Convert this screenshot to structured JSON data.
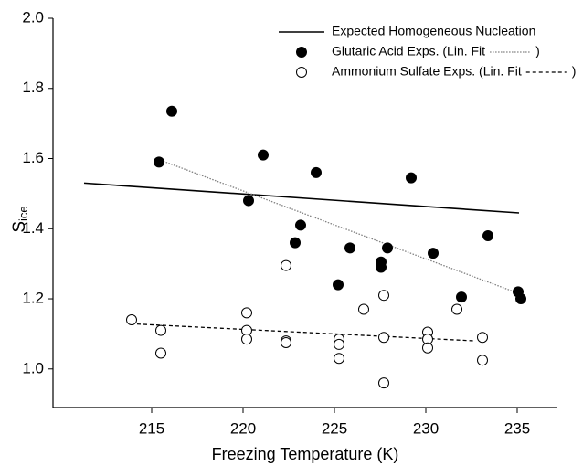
{
  "chart_data": {
    "type": "scatter",
    "xlabel": "Freezing Temperature (K)",
    "ylabel": "S",
    "ylabel_sub": "ice",
    "xlim": [
      209.6,
      237.2
    ],
    "xticks": [
      215,
      220,
      225,
      230,
      235
    ],
    "ylim": [
      0.89,
      2.0
    ],
    "yticks": [
      {
        "value": 1.0,
        "label": "1.0"
      },
      1.2,
      1.4,
      1.6,
      1.8,
      {
        "value": 2.0,
        "label": "2.0"
      }
    ],
    "legend": "top-right",
    "legend_close": ")",
    "series": [
      {
        "name": "Expected Homogeneous Nucleation",
        "style": "line",
        "color": "#000000",
        "x": [
          211.3,
          235.1
        ],
        "values": [
          1.53,
          1.445
        ]
      },
      {
        "name": "Glutaric Acid Exps. (Lin. Fit",
        "style": "filled",
        "color": "#000000",
        "x": [
          215.4,
          216.1,
          220.3,
          221.1,
          222.85,
          223.15,
          224.0,
          225.2,
          225.85,
          227.55,
          227.55,
          227.9,
          229.2,
          230.4,
          231.95,
          233.4,
          235.05,
          235.2
        ],
        "values": [
          1.59,
          1.735,
          1.48,
          1.61,
          1.36,
          1.41,
          1.56,
          1.24,
          1.345,
          1.29,
          1.305,
          1.345,
          1.545,
          1.33,
          1.205,
          1.38,
          1.22,
          1.2
        ],
        "fit": {
          "x": [
            215.5,
            235.1
          ],
          "values": [
            1.595,
            1.215
          ],
          "color": "#808080",
          "dash": "1.5,1.5"
        }
      },
      {
        "name": "Ammonium Sulfate Exps. (Lin. Fit",
        "style": "open",
        "color": "#000000",
        "x": [
          213.9,
          215.5,
          215.5,
          220.2,
          220.2,
          220.2,
          222.35,
          222.35,
          222.35,
          225.25,
          225.25,
          225.25,
          226.6,
          227.7,
          227.7,
          227.7,
          230.1,
          230.1,
          230.1,
          231.7,
          233.1,
          233.1
        ],
        "values": [
          1.14,
          1.11,
          1.045,
          1.16,
          1.11,
          1.085,
          1.295,
          1.08,
          1.075,
          1.085,
          1.07,
          1.03,
          1.17,
          1.21,
          1.09,
          0.96,
          1.105,
          1.085,
          1.06,
          1.17,
          1.09,
          1.025
        ],
        "fit": {
          "x": [
            214.2,
            232.7
          ],
          "values": [
            1.128,
            1.08
          ],
          "color": "#000000",
          "dash": "4,3"
        }
      }
    ]
  }
}
